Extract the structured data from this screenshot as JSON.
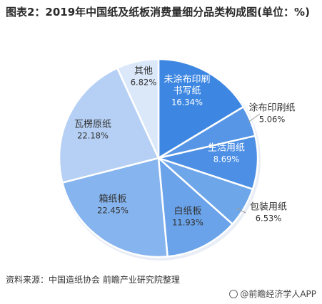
{
  "title": "图表2：2019年中国纸及纸板消费量细分品类构成图(单位：%)",
  "source": "资料来源：中国造纸协会 前瞻产业研究院整理",
  "footer_brand": "@前瞻经济学人APP",
  "chart_data": {
    "type": "pie",
    "title": "图表2：2019年中国纸及纸板消费量细分品类构成图(单位：%)",
    "unit": "%",
    "start_angle_deg": 0,
    "direction": "clockwise",
    "slices": [
      {
        "name": "未涂布印刷书写纸",
        "lines": [
          "未涂布印刷",
          "书写纸"
        ],
        "value": 16.34,
        "label": "16.34%",
        "color": "#3d87e2",
        "label_inside": true,
        "text_color": "#ffffff"
      },
      {
        "name": "涂布印刷纸",
        "lines": [
          "涂布印刷纸"
        ],
        "value": 5.06,
        "label": "5.06%",
        "color": "#5796e6",
        "label_inside": false,
        "text_color": "#333333"
      },
      {
        "name": "生活用纸",
        "lines": [
          "生活用纸"
        ],
        "value": 8.69,
        "label": "8.69%",
        "color": "#4d8fe4",
        "label_inside": true,
        "text_color": "#ffffff"
      },
      {
        "name": "包装用纸",
        "lines": [
          "包装用纸"
        ],
        "value": 6.53,
        "label": "6.53%",
        "color": "#6ea6ea",
        "label_inside": false,
        "text_color": "#333333"
      },
      {
        "name": "白纸板",
        "lines": [
          "白纸板"
        ],
        "value": 11.93,
        "label": "11.93%",
        "color": "#6aa3ea",
        "label_inside": true,
        "text_color": "#333333"
      },
      {
        "name": "箱纸板",
        "lines": [
          "箱纸板"
        ],
        "value": 22.45,
        "label": "22.45%",
        "color": "#86b4ee",
        "label_inside": true,
        "text_color": "#333333"
      },
      {
        "name": "瓦楞原纸",
        "lines": [
          "瓦楞原纸"
        ],
        "value": 22.18,
        "label": "22.18%",
        "color": "#b5d0f4",
        "label_inside": true,
        "text_color": "#333333"
      },
      {
        "name": "其他",
        "lines": [
          "其他"
        ],
        "value": 6.82,
        "label": "6.82%",
        "color": "#dbe8fa",
        "label_inside": true,
        "text_color": "#333333"
      }
    ]
  }
}
